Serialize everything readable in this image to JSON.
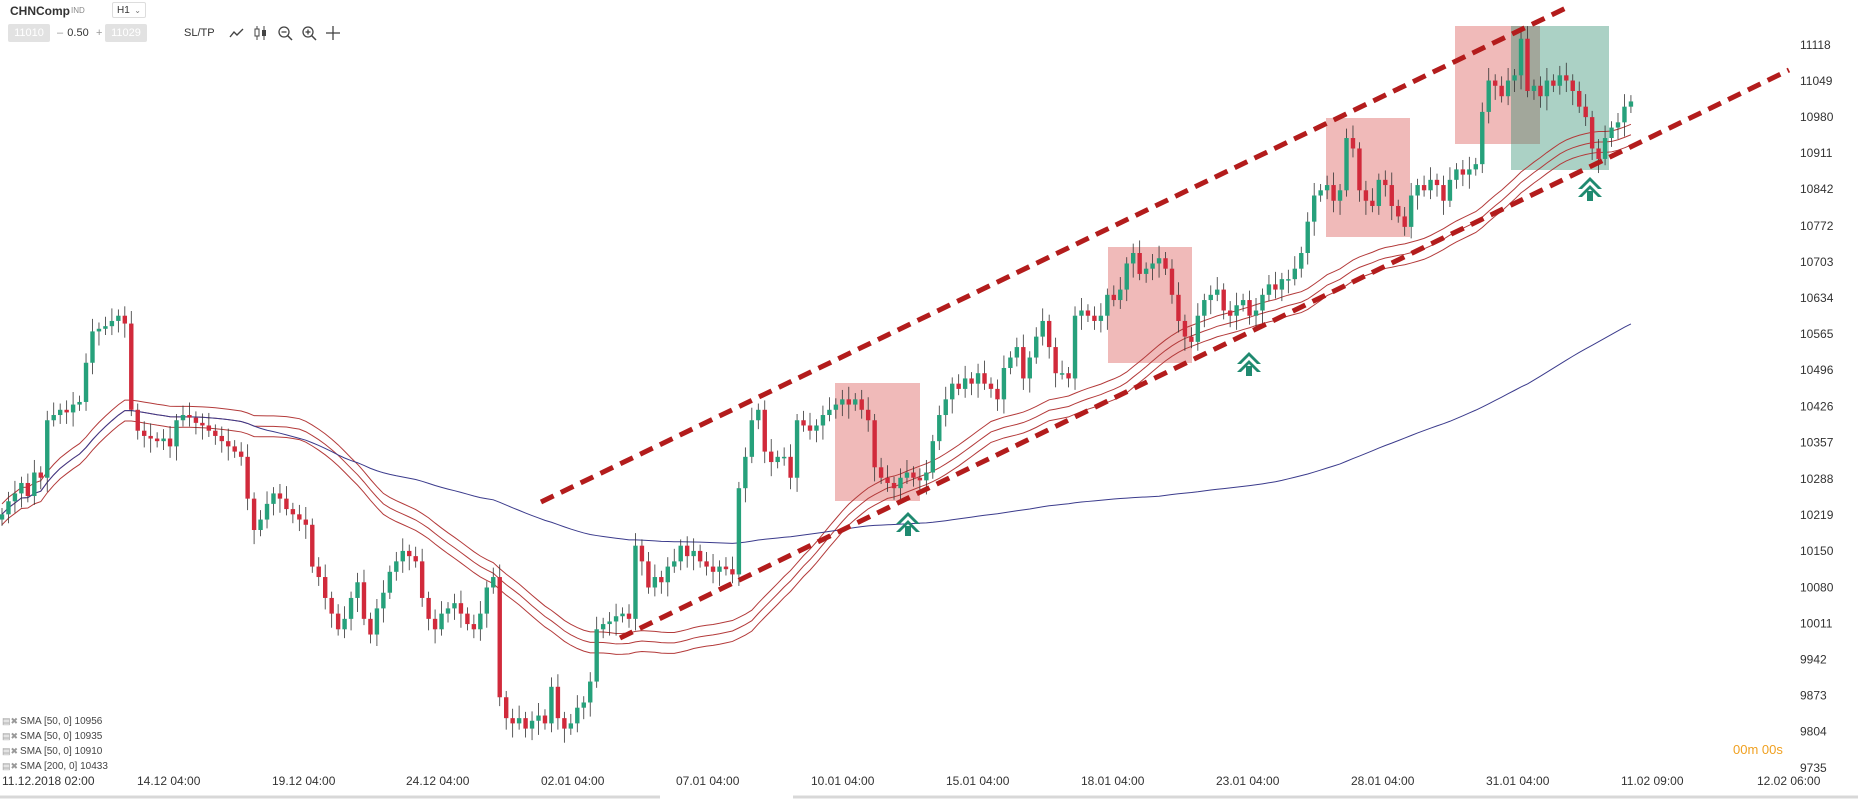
{
  "toolbar": {
    "symbol": "CHNComp",
    "instrument_type": "IND",
    "timeframe": "H1",
    "bid": "11010",
    "spread": "0.50",
    "ask": "11029",
    "minus": "–",
    "plus": "+",
    "sltp": "SL/TP",
    "tools": [
      "line-chart-icon",
      "candles-icon",
      "zoom-out-icon",
      "zoom-in-icon",
      "crosshair-icon"
    ]
  },
  "legend": [
    "SMA [50, 0] 10956",
    "SMA [50, 0] 10935",
    "SMA [50, 0] 10910",
    "SMA [200, 0] 10433"
  ],
  "timer": "00m 00s",
  "colors": {
    "up": "#26a17b",
    "down": "#d12a3b",
    "channel": "#b31c1c",
    "envelope": "#b33a3a",
    "sma200": "#3b3b8c",
    "red_zone": "#d9534f",
    "green_zone": "#2e8b6f",
    "arrow": "#1f8a70"
  },
  "chart_data": {
    "type": "candlestick",
    "title": "",
    "y_ticks": [
      11118,
      11049,
      10980,
      10911,
      10842,
      10772,
      10703,
      10634,
      10565,
      10496,
      10426,
      10357,
      10288,
      10219,
      10150,
      10080,
      10011,
      9942,
      9873,
      9804,
      9735
    ],
    "x_ticks": [
      "11.12.2018 02:00",
      "14.12 04:00",
      "19.12 04:00",
      "24.12 04:00",
      "02.01 04:00",
      "07.01 04:00",
      "10.01 04:00",
      "15.01 04:00",
      "18.01 04:00",
      "23.01 04:00",
      "28.01 04:00",
      "31.01 04:00",
      "11.02 09:00",
      "12.02 06:00"
    ],
    "ylim": [
      9735,
      11180
    ],
    "closes": [
      10220,
      10245,
      10260,
      10280,
      10255,
      10300,
      10290,
      10400,
      10410,
      10420,
      10415,
      10430,
      10435,
      10510,
      10570,
      10575,
      10580,
      10590,
      10600,
      10585,
      10420,
      10380,
      10370,
      10365,
      10360,
      10365,
      10350,
      10400,
      10410,
      10405,
      10395,
      10390,
      10380,
      10370,
      10360,
      10350,
      10340,
      10330,
      10250,
      10190,
      10210,
      10240,
      10260,
      10250,
      10230,
      10220,
      10210,
      10200,
      10120,
      10100,
      10060,
      10030,
      10000,
      10020,
      10060,
      10090,
      10020,
      9990,
      10040,
      10070,
      10110,
      10130,
      10150,
      10140,
      10130,
      10060,
      10020,
      10000,
      10030,
      10040,
      10050,
      10030,
      10010,
      10000,
      10030,
      10080,
      10100,
      9870,
      9830,
      9820,
      9830,
      9810,
      9825,
      9835,
      9820,
      9890,
      9830,
      9810,
      9820,
      9850,
      9860,
      9900,
      10000,
      10010,
      10015,
      10025,
      10030,
      10020,
      10160,
      10130,
      10080,
      10100,
      10090,
      10120,
      10130,
      10160,
      10140,
      10150,
      10130,
      10120,
      10110,
      10120,
      10115,
      10105,
      10270,
      10330,
      10400,
      10420,
      10340,
      10320,
      10330,
      10330,
      10290,
      10400,
      10390,
      10380,
      10390,
      10410,
      10420,
      10430,
      10440,
      10430,
      10440,
      10420,
      10400,
      10310,
      10290,
      10280,
      10270,
      10290,
      10300,
      10290,
      10285,
      10300,
      10360,
      10410,
      10440,
      10470,
      10460,
      10480,
      10470,
      10490,
      10470,
      10460,
      10440,
      10500,
      10520,
      10540,
      10480,
      10520,
      10560,
      10590,
      10540,
      10490,
      10490,
      10480,
      10600,
      10610,
      10600,
      10590,
      10600,
      10640,
      10630,
      10650,
      10700,
      10720,
      10680,
      10690,
      10700,
      10710,
      10690,
      10640,
      10590,
      10560,
      10550,
      10600,
      10630,
      10640,
      10650,
      10610,
      10600,
      10620,
      10630,
      10600,
      10610,
      10640,
      10660,
      10650,
      10670,
      10670,
      10690,
      10720,
      10780,
      10830,
      10840,
      10850,
      10820,
      10840,
      10940,
      10920,
      10840,
      10820,
      10810,
      10860,
      10850,
      10810,
      10790,
      10770,
      10830,
      10850,
      10840,
      10860,
      10850,
      10820,
      10860,
      10880,
      10870,
      10880,
      10890,
      10990,
      11050,
      11040,
      11020,
      11050,
      11060,
      11130,
      11030,
      11040,
      11020,
      11050,
      11040,
      11060,
      11050,
      11030,
      11000,
      10980,
      10920,
      10900,
      10940,
      10960,
      10970,
      11000,
      11010
    ]
  }
}
